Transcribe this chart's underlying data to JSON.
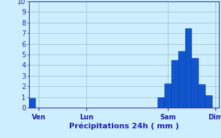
{
  "title": "",
  "xlabel": "Précipitations 24h ( mm )",
  "ylabel": "",
  "background_color": "#cceeff",
  "bar_color": "#1155cc",
  "bar_edge_color": "#0033aa",
  "ylim": [
    0,
    10
  ],
  "yticks": [
    0,
    1,
    2,
    3,
    4,
    5,
    6,
    7,
    8,
    9,
    10
  ],
  "num_bars": 28,
  "bar_values": [
    0.9,
    0,
    0,
    0,
    0,
    0,
    0,
    0,
    0,
    0,
    0,
    0,
    0,
    0,
    0,
    0,
    0,
    0,
    0,
    1.0,
    2.3,
    4.5,
    5.3,
    7.5,
    4.7,
    2.2,
    1.2,
    0
  ],
  "day_labels": [
    "Ven",
    "Lun",
    "Sam",
    "Dim"
  ],
  "day_positions": [
    1,
    8,
    20,
    27
  ],
  "grid_color": "#99bbbb",
  "axis_color": "#3333aa",
  "tick_color": "#2222aa",
  "xlabel_color": "#2222aa",
  "xlabel_fontsize": 8,
  "ytick_fontsize": 7,
  "xtick_fontsize": 7
}
